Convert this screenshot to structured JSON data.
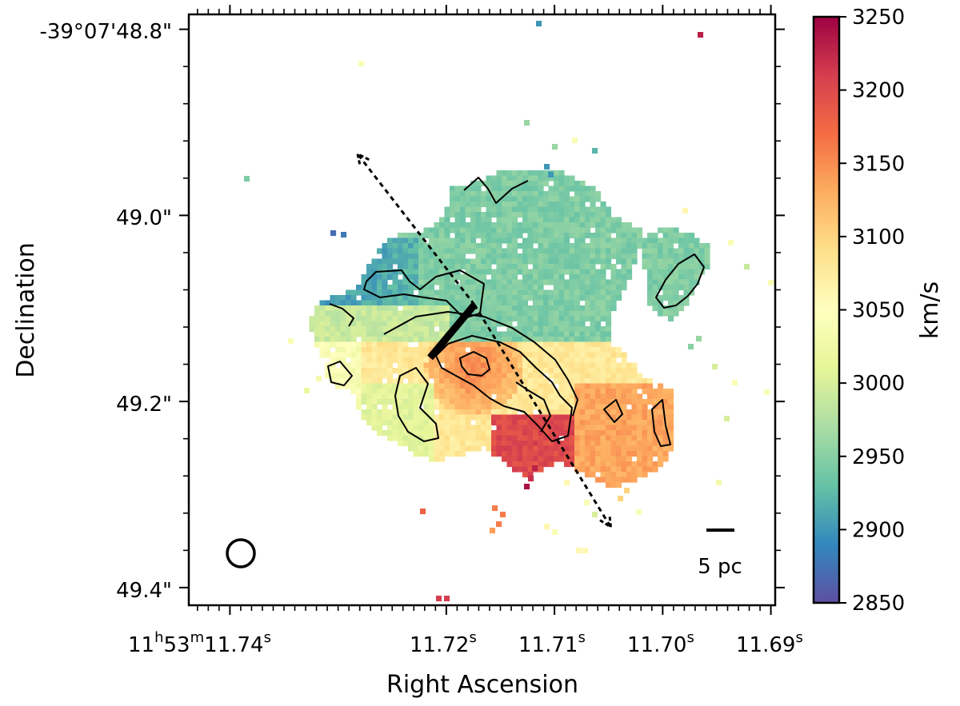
{
  "chart_data": {
    "type": "heatmap",
    "title": "",
    "xlabel": "Right Ascension",
    "ylabel": "Declination",
    "x_ticks": [
      {
        "h": "11",
        "m": "53",
        "s": "11.74",
        "label_full": "11h53m11.74s",
        "value_s": 11.74
      },
      {
        "s": "11.72",
        "value_s": 11.72
      },
      {
        "s": "11.71",
        "value_s": 11.71
      },
      {
        "s": "11.70",
        "value_s": 11.7
      },
      {
        "s": "11.69",
        "value_s": 11.69
      }
    ],
    "xlim_s": [
      11.7438,
      11.6896
    ],
    "y_ticks": [
      {
        "label": "-39°07'48.8\"",
        "value_arcsec": 48.8
      },
      {
        "label": "49.0\"",
        "value_arcsec": 49.0
      },
      {
        "label": "49.2\"",
        "value_arcsec": 49.2
      },
      {
        "label": "49.4\"",
        "value_arcsec": 49.4
      }
    ],
    "ylim_arcsec": [
      49.419,
      48.784
    ],
    "colorbar": {
      "label": "km/s",
      "min": 2850,
      "max": 3250,
      "ticks": [
        2850,
        2900,
        2950,
        3000,
        3050,
        3100,
        3150,
        3200,
        3250
      ],
      "colormap": "Spectral_r",
      "colors": [
        "#5e4fa2",
        "#3288bd",
        "#66c2a5",
        "#abdda4",
        "#e6f598",
        "#ffffbf",
        "#fee08b",
        "#fdae61",
        "#f46d43",
        "#d53e4f",
        "#9e0142"
      ]
    },
    "velocity_field": {
      "north_arm_kms": 2945,
      "north_blue_edge_kms": 2905,
      "south_center_kms": 3080,
      "southeast_peak_kms": 3200,
      "southwest_region_kms": 3135,
      "contour_interval_kms": 50
    },
    "annotations": {
      "scale_bar_label": "5 pc",
      "arrows": [
        {
          "from": [
            11.7174,
            49.096
          ],
          "to": [
            11.7282,
            48.934
          ],
          "style": "dashed"
        },
        {
          "from": [
            11.7174,
            49.096
          ],
          "to": [
            11.7048,
            49.335
          ],
          "style": "dashed"
        }
      ],
      "thick_segment": {
        "from": [
          11.7174,
          49.096
        ],
        "to": [
          11.7215,
          49.153
        ]
      },
      "beam": {
        "shape": "circle",
        "center": [
          11.7418,
          49.362
        ]
      }
    }
  }
}
